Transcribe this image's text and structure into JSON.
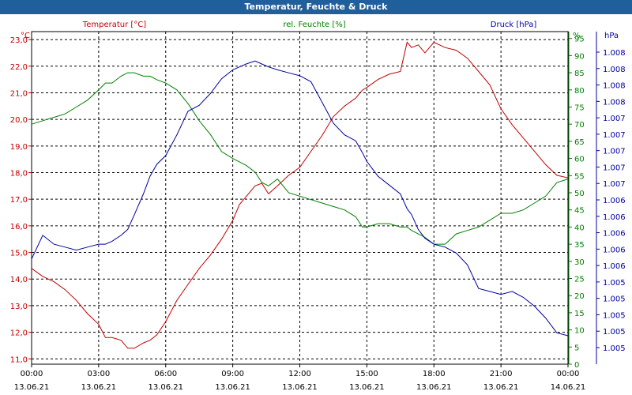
{
  "window": {
    "title": "Temperatur, Feuchte & Druck"
  },
  "headers": {
    "temp": "Temperatur [°C]",
    "hum": "rel. Feuchte [%]",
    "press": "Druck [hPa]"
  },
  "units": {
    "temp": "°C",
    "hum": "%",
    "press": "hPa"
  },
  "colors": {
    "temp": "#c00000",
    "hum": "#008000",
    "press": "#0000a0",
    "titlebar": "#1f5f9c"
  },
  "chart_data": {
    "type": "line",
    "title": "Temperatur, Feuchte & Druck",
    "grid": true,
    "x_ticks": [
      {
        "time": "00:00",
        "date": "13.06.21"
      },
      {
        "time": "03:00",
        "date": "13.06.21"
      },
      {
        "time": "06:00",
        "date": "13.06.21"
      },
      {
        "time": "09:00",
        "date": "13.06.21"
      },
      {
        "time": "12:00",
        "date": "13.06.21"
      },
      {
        "time": "15:00",
        "date": "13.06.21"
      },
      {
        "time": "18:00",
        "date": "13.06.21"
      },
      {
        "time": "21:00",
        "date": "13.06.21"
      },
      {
        "time": "00:00",
        "date": "14.06.21"
      }
    ],
    "xlim_hours": [
      0,
      24
    ],
    "axes": {
      "temp": {
        "ylim": [
          10.8,
          23.3
        ],
        "ticks": [
          "11,0",
          "12,0",
          "13,0",
          "14,0",
          "15,0",
          "16,0",
          "17,0",
          "18,0",
          "19,0",
          "20,0",
          "21,0",
          "22,0",
          "23,0"
        ]
      },
      "hum": {
        "ylim": [
          0,
          97
        ],
        "ticks": [
          "0",
          "5",
          "10",
          "15",
          "20",
          "25",
          "30",
          "35",
          "40",
          "45",
          "50",
          "55",
          "60",
          "65",
          "70",
          "75",
          "80",
          "85",
          "90",
          "95"
        ]
      },
      "press": {
        "ylim": [
          0,
          1
        ],
        "ticks": [
          "1.005",
          "1.005",
          "1.005",
          "1.005",
          "1.005",
          "1.006",
          "1.006",
          "1.006",
          "1.006",
          "1.006",
          "1.007",
          "1.007",
          "1.007",
          "1.007",
          "1.007",
          "1.008",
          "1.008",
          "1.008",
          "1.008"
        ]
      }
    },
    "series": [
      {
        "name": "Temperatur [°C]",
        "axis": "temp",
        "color": "#c00000",
        "x": [
          0,
          0.5,
          1,
          1.5,
          2,
          2.5,
          3,
          3.3,
          3.6,
          4,
          4.3,
          4.6,
          5,
          5.3,
          5.6,
          6,
          6.5,
          7,
          7.5,
          8,
          8.5,
          9,
          9.3,
          9.6,
          10,
          10.3,
          10.6,
          11,
          11.5,
          12,
          12.5,
          13,
          13.5,
          14,
          14.5,
          14.8,
          15,
          15.5,
          16,
          16.5,
          16.8,
          17,
          17.3,
          17.6,
          18,
          18.5,
          19,
          19.5,
          20,
          20.5,
          21,
          21.5,
          22,
          22.5,
          23,
          23.5,
          24
        ],
        "y": [
          14.4,
          14.1,
          13.9,
          13.6,
          13.2,
          12.7,
          12.3,
          11.8,
          11.8,
          11.7,
          11.4,
          11.4,
          11.6,
          11.7,
          11.9,
          12.4,
          13.2,
          13.8,
          14.4,
          14.9,
          15.5,
          16.2,
          16.8,
          17.1,
          17.5,
          17.6,
          17.2,
          17.5,
          17.9,
          18.2,
          18.8,
          19.4,
          20.1,
          20.5,
          20.8,
          21.1,
          21.2,
          21.5,
          21.7,
          21.8,
          22.9,
          22.7,
          22.8,
          22.5,
          22.9,
          22.7,
          22.6,
          22.3,
          21.8,
          21.3,
          20.4,
          19.8,
          19.3,
          18.8,
          18.3,
          17.9,
          17.8
        ]
      },
      {
        "name": "rel. Feuchte [%]",
        "axis": "hum",
        "color": "#008000",
        "x": [
          0,
          0.5,
          1,
          1.5,
          2,
          2.5,
          3,
          3.3,
          3.6,
          4,
          4.3,
          4.6,
          5,
          5.3,
          5.6,
          6,
          6.5,
          7,
          7.5,
          8,
          8.5,
          9,
          9.3,
          9.6,
          10,
          10.3,
          10.6,
          11,
          11.5,
          12,
          12.5,
          13,
          13.5,
          14,
          14.5,
          14.8,
          15,
          15.5,
          16,
          16.5,
          16.8,
          17,
          17.3,
          17.6,
          18,
          18.5,
          19,
          19.5,
          20,
          20.5,
          21,
          21.5,
          22,
          22.5,
          23,
          23.5,
          24
        ],
        "y": [
          70,
          71,
          72,
          73,
          75,
          77,
          80,
          82,
          82,
          84,
          85,
          85,
          84,
          84,
          83,
          82,
          80,
          76,
          71,
          67,
          62,
          60,
          59,
          58,
          56,
          53,
          52,
          54,
          50,
          49,
          48,
          47,
          46,
          45,
          43,
          40,
          40,
          41,
          41,
          40,
          40,
          39,
          38,
          37,
          35,
          35,
          38,
          39,
          40,
          42,
          44,
          44,
          45,
          47,
          49,
          53,
          54
        ]
      },
      {
        "name": "Druck [hPa]",
        "axis": "press",
        "color": "#0000a0",
        "x": [
          0,
          0.5,
          1,
          1.5,
          2,
          2.5,
          3,
          3.3,
          3.6,
          4,
          4.3,
          4.6,
          5,
          5.3,
          5.6,
          6,
          6.5,
          7,
          7.5,
          8,
          8.5,
          9,
          9.3,
          9.6,
          10,
          10.3,
          10.6,
          11,
          11.5,
          12,
          12.5,
          13,
          13.5,
          14,
          14.5,
          14.8,
          15,
          15.5,
          16,
          16.5,
          16.8,
          17,
          17.3,
          17.6,
          18,
          18.5,
          19,
          19.5,
          20,
          20.5,
          21,
          21.5,
          22,
          22.5,
          23,
          23.5,
          24
        ],
        "y": [
          0.3,
          0.38,
          0.35,
          0.34,
          0.33,
          0.34,
          0.35,
          0.35,
          0.36,
          0.38,
          0.4,
          0.45,
          0.52,
          0.58,
          0.62,
          0.65,
          0.72,
          0.8,
          0.82,
          0.86,
          0.91,
          0.94,
          0.95,
          0.96,
          0.97,
          0.96,
          0.95,
          0.94,
          0.93,
          0.92,
          0.9,
          0.83,
          0.76,
          0.72,
          0.7,
          0.66,
          0.63,
          0.58,
          0.55,
          0.52,
          0.47,
          0.45,
          0.4,
          0.37,
          0.35,
          0.34,
          0.32,
          0.28,
          0.2,
          0.19,
          0.18,
          0.19,
          0.17,
          0.14,
          0.1,
          0.05,
          0.04
        ]
      }
    ]
  }
}
